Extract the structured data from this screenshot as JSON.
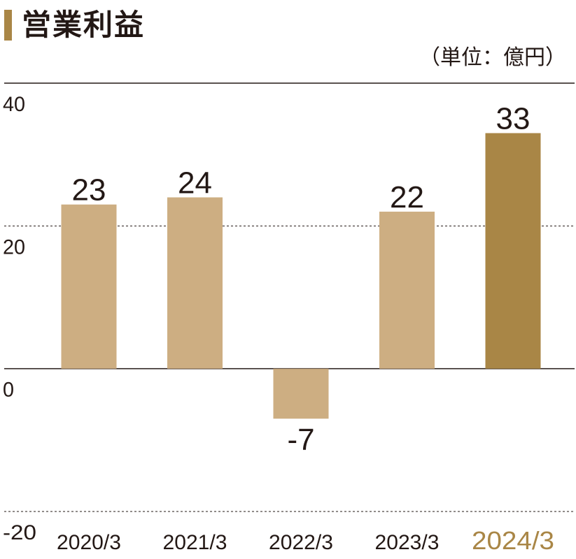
{
  "title": "営業利益",
  "unit_label": "（単位：億円）",
  "colors": {
    "bar": "#cdae82",
    "bar_highlight": "#a98646",
    "text": "#231815",
    "title_marker": "#a98646"
  },
  "chart_data": {
    "type": "bar",
    "title": "営業利益",
    "xlabel": "",
    "ylabel": "",
    "categories": [
      "2020/3",
      "2021/3",
      "2022/3",
      "2023/3",
      "2024/3"
    ],
    "values": [
      23,
      24,
      -7,
      22,
      33
    ],
    "data_labels": [
      "23",
      "24",
      "-7",
      "22",
      "33"
    ],
    "highlight_index": 4,
    "ylim": [
      -20,
      40
    ],
    "yticks": [
      40,
      20,
      0,
      -20
    ],
    "ytick_labels": [
      "40",
      "20",
      "0",
      "-20"
    ],
    "grid": "dashed at 20 and -20",
    "legend": "none"
  }
}
